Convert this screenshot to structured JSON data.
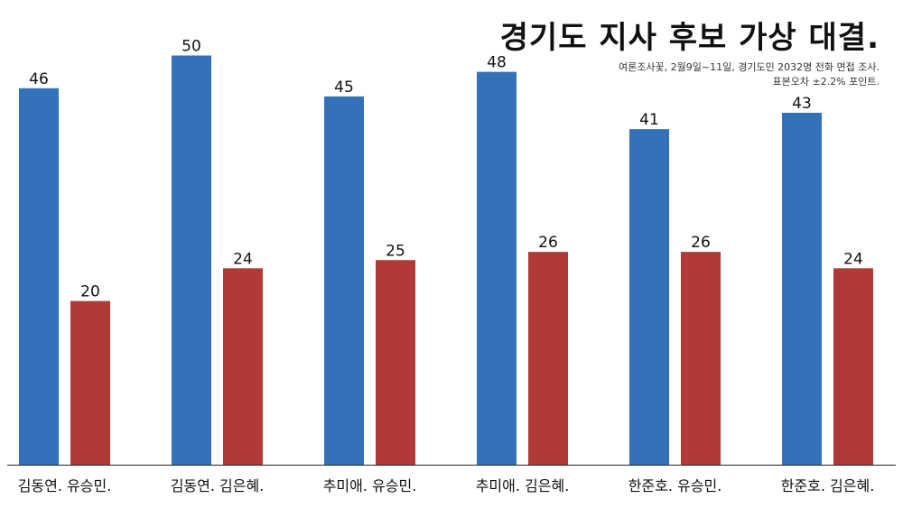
{
  "chart_data": {
    "type": "bar",
    "title": "경기도 지사 후보 가상 대결.",
    "notes": [
      "여론조사꽃, 2월9일~11일, 경기도민 2032명 전화 면접 조사.",
      "표본오차 ±2.2% 포인트."
    ],
    "xlabel": "",
    "ylabel": "",
    "ylim": [
      0,
      53
    ],
    "grid": false,
    "legend": "none",
    "categories": [
      "김동연. 유승민.",
      "김동연. 김은혜.",
      "추미애. 유승민.",
      "추미애. 김은혜.",
      "한준호. 유승민.",
      "한준호. 김은혜."
    ],
    "series": [
      {
        "color": "#3372b8",
        "values": [
          46,
          50,
          45,
          48,
          41,
          43
        ]
      },
      {
        "color": "#b03a37",
        "values": [
          20,
          24,
          25,
          26,
          26,
          24
        ]
      }
    ]
  }
}
